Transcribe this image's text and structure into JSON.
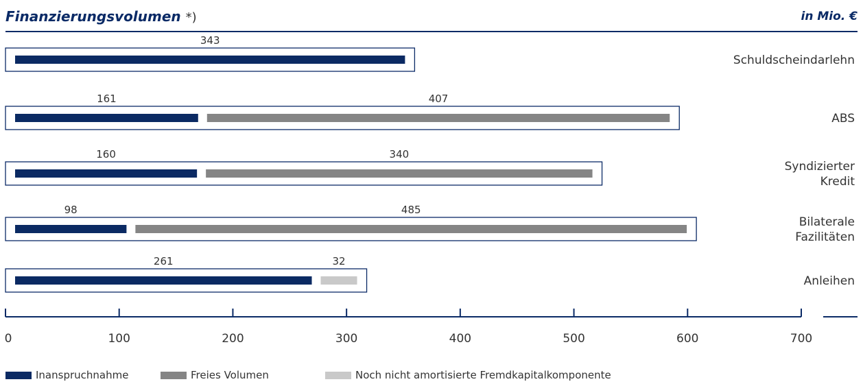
{
  "header": {
    "title": "Finanzierungsvolumen",
    "title_mark": "*)",
    "unit": "in Mio. €"
  },
  "colors": {
    "drawn": "#0b2a63",
    "free": "#858585",
    "unamortized": "#c9c9c9",
    "frame": "#0a2a66",
    "axis": "#0a2a66"
  },
  "chart_data": {
    "type": "bar",
    "orientation": "horizontal",
    "stacked": true,
    "categories": [
      [
        "Schuldscheindarlehn"
      ],
      [
        "ABS"
      ],
      [
        "Syndizierter",
        "Kredit"
      ],
      [
        "Bilaterale",
        "Fazilitäten"
      ],
      [
        "Anleihen"
      ]
    ],
    "series": [
      {
        "name": "Inanspruchnahme",
        "values": [
          343,
          161,
          160,
          98,
          261
        ],
        "color": "#0b2a63"
      },
      {
        "name": "Freies Volumen",
        "values": [
          null,
          407,
          340,
          485,
          null
        ],
        "color": "#858585"
      },
      {
        "name": "Noch nicht amortisierte Fremdkapitalkomponente",
        "values": [
          null,
          null,
          null,
          null,
          32
        ],
        "color": "#c9c9c9"
      }
    ],
    "xlim": [
      0,
      700
    ],
    "xticks": [
      0,
      100,
      200,
      300,
      400,
      500,
      600,
      700
    ],
    "grid": false,
    "legend_position": "bottom-left"
  },
  "legend": [
    {
      "label": "Inanspruchnahme",
      "color": "#0b2a63"
    },
    {
      "label": "Freies Volumen",
      "color": "#858585"
    },
    {
      "label": "Noch nicht amortisierte Fremdkapitalkomponente",
      "color": "#c9c9c9"
    }
  ]
}
